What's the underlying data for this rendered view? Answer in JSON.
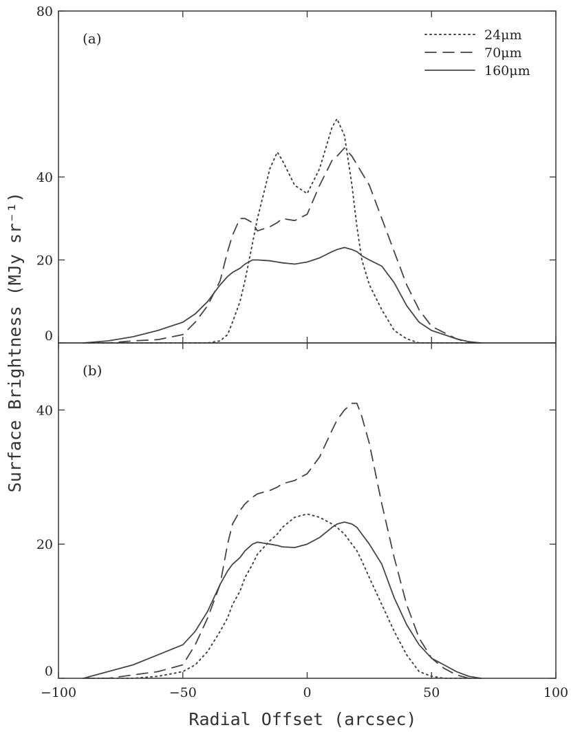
{
  "chart_data": {
    "type": "line",
    "xlabel": "Radial Offset (arcsec)",
    "ylabel": "Surface Brightness (MJy sr⁻¹)",
    "xlim": [
      -100,
      100
    ],
    "x_ticks": [
      -100,
      -50,
      0,
      50,
      100
    ],
    "x_tick_labels": [
      "−100",
      "−50",
      "0",
      "50",
      "100"
    ],
    "legend_location": "top-right",
    "legend": [
      "24μm",
      "70μm",
      "160μm"
    ],
    "series_styles": {
      "24μm": "dotted",
      "70μm": "dashed",
      "160μm": "solid"
    },
    "line_color": "#444444",
    "panels": [
      {
        "label": "(a)",
        "ylim": [
          0,
          80
        ],
        "y_ticks": [
          0,
          20,
          40,
          80
        ],
        "y_tick_labels": [
          "0",
          "20",
          "40",
          "80"
        ],
        "x": [
          -90,
          -80,
          -70,
          -60,
          -50,
          -45,
          -40,
          -35,
          -32,
          -30,
          -27,
          -25,
          -22,
          -20,
          -15,
          -12,
          -10,
          -5,
          0,
          5,
          10,
          12,
          15,
          18,
          20,
          22,
          25,
          30,
          35,
          40,
          45,
          50,
          55,
          60,
          65,
          70
        ],
        "series": [
          {
            "name": "24μm",
            "values": [
              0,
              0,
              0,
              0,
              0,
              0,
              0,
              0.5,
              2,
              5,
              10,
              15,
              24,
              30,
              42,
              46,
              44,
              38,
              36,
              42,
              52,
              54,
              50,
              38,
              28,
              20,
              14,
              8,
              3,
              1,
              0,
              0,
              0,
              0,
              0,
              0
            ]
          },
          {
            "name": "70μm",
            "values": [
              0,
              0,
              0.5,
              0.8,
              2,
              5,
              9,
              15,
              22,
              26,
              30,
              30,
              29,
              27,
              28,
              29,
              30,
              29.5,
              31,
              38,
              44,
              45,
              47,
              45,
              43,
              41,
              38,
              30,
              22,
              14,
              8,
              4,
              2.5,
              1,
              0,
              0
            ]
          },
          {
            "name": "160μm",
            "values": [
              0,
              0.5,
              1.5,
              3,
              5,
              7,
              10,
              14,
              16,
              17,
              18,
              19,
              20,
              20,
              19.8,
              19.5,
              19.3,
              19,
              19.5,
              20.5,
              22,
              22.5,
              23,
              22.5,
              22,
              21,
              20,
              18.5,
              14.5,
              9,
              5,
              3,
              2,
              1,
              0.3,
              0
            ]
          }
        ]
      },
      {
        "label": "(b)",
        "ylim": [
          0,
          50
        ],
        "y_ticks": [
          0,
          20,
          40
        ],
        "y_tick_labels": [
          "0",
          "20",
          "40"
        ],
        "x": [
          -90,
          -80,
          -70,
          -60,
          -50,
          -45,
          -40,
          -35,
          -32,
          -30,
          -27,
          -25,
          -22,
          -20,
          -15,
          -12,
          -10,
          -5,
          0,
          5,
          10,
          12,
          15,
          18,
          20,
          22,
          25,
          30,
          35,
          40,
          45,
          50,
          55,
          60,
          65,
          70
        ],
        "series": [
          {
            "name": "24μm",
            "values": [
              0,
              0,
              0,
              0.3,
              1,
              2,
              4,
              7,
              9,
              11,
              13,
              15,
              17,
              18.5,
              20.5,
              21.5,
              22.5,
              24,
              24.5,
              24,
              23,
              22.5,
              21.5,
              20,
              19,
              17.5,
              15,
              11,
              7,
              3.5,
              1,
              0.3,
              0,
              0,
              0,
              0
            ]
          },
          {
            "name": "70μm",
            "values": [
              0,
              0,
              0.5,
              1,
              2,
              5,
              9,
              14,
              20,
              23,
              25,
              26,
              27,
              27.5,
              28,
              28.5,
              29,
              29.5,
              30.5,
              33,
              37,
              38.5,
              40,
              41,
              41,
              39,
              35,
              26,
              18,
              11,
              6,
              3,
              1.5,
              0.5,
              0,
              0
            ]
          },
          {
            "name": "160μm",
            "values": [
              0,
              1,
              2,
              3.5,
              5,
              7,
              10,
              14,
              16,
              17,
              18,
              19,
              20,
              20.3,
              20,
              19.8,
              19.6,
              19.5,
              20,
              21,
              22.5,
              23,
              23.3,
              23,
              22.5,
              21.5,
              20,
              17,
              12,
              8,
              5,
              3,
              2,
              1,
              0.3,
              0
            ]
          }
        ]
      }
    ]
  }
}
